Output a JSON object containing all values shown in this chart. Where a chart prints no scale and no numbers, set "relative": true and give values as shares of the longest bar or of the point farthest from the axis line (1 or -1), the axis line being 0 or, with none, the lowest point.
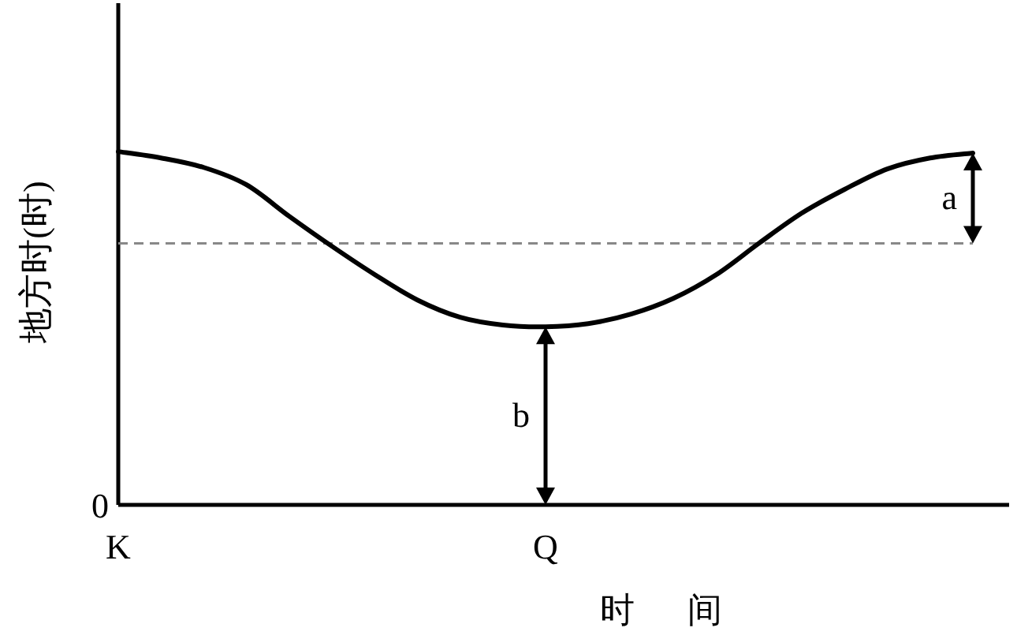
{
  "chart_data": {
    "type": "line",
    "relative": true,
    "xlabel": "时 间",
    "ylabel": "地方时(时)",
    "categories": [
      "K",
      null,
      null,
      null,
      null,
      null,
      null,
      null,
      null,
      null,
      "Q",
      null,
      null,
      null,
      null,
      null,
      null,
      null,
      null,
      null,
      null
    ],
    "series": [
      {
        "color": "#000000",
        "values": [
          1.0,
          0.982,
          0.955,
          0.906,
          0.817,
          0.732,
          0.652,
          0.58,
          0.531,
          0.509,
          0.504,
          0.513,
          0.54,
          0.585,
          0.652,
          0.741,
          0.826,
          0.893,
          0.951,
          0.982,
          0.996
        ]
      }
    ],
    "ref_lines": [
      {
        "axis": "y",
        "value": 0.74,
        "color": "#888888",
        "line_style": "dashed"
      }
    ],
    "annotations": [
      "0",
      "a",
      "b"
    ],
    "grid": false,
    "marker": "none",
    "line_style": "solid"
  }
}
